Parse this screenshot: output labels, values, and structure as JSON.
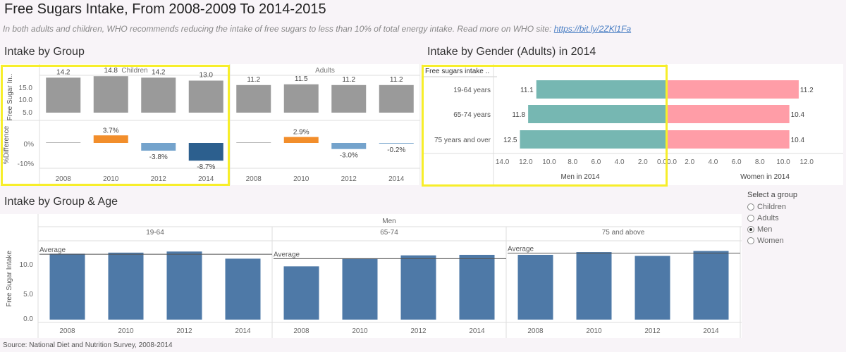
{
  "header": {
    "title": "Free Sugars Intake, From 2008-2009 To 2014-2015",
    "subtitle": "In both adults and children, WHO recommends reducing the intake of free sugars to less than 10% of total energy intake. Read more on WHO site: ",
    "link": "https://bit.ly/2ZKl1Fa"
  },
  "sections": {
    "group": "Intake by Group",
    "gender": "Intake by Gender (Adults) in 2014",
    "age": "Intake by Group & Age"
  },
  "filter": {
    "label": "Select a group",
    "options": [
      "Children",
      "Adults",
      "Men",
      "Women"
    ],
    "selected": "Men"
  },
  "footer": "Source: National Diet and Nutrition Survey, 2008-2014",
  "colors": {
    "bar_gray": "#9a9a9a",
    "pos": "#f28e2b",
    "neg_light": "#74a3cc",
    "neg_dark": "#2c5f8e",
    "men": "#76b7b2",
    "women": "#ff9da7",
    "blue": "#4e79a7",
    "highlight": "#f7ee2a"
  },
  "chart_data": [
    {
      "type": "bar",
      "title": "Intake by Group",
      "panels": [
        "Children",
        "Adults"
      ],
      "categories": [
        "2008",
        "2010",
        "2012",
        "2014"
      ],
      "ylabel": "Free Sugar In..",
      "yticks": [
        "15.0",
        "10.0",
        "5.0"
      ],
      "ylim": [
        0,
        16.5
      ],
      "series": [
        {
          "name": "Children",
          "values": [
            14.2,
            14.8,
            14.2,
            13.0
          ],
          "labels": [
            "14.2",
            "14.8",
            "14.2",
            "13.0"
          ]
        },
        {
          "name": "Adults",
          "values": [
            11.2,
            11.5,
            11.2,
            11.2
          ],
          "labels": [
            "11.2",
            "11.5",
            "11.2",
            "11.2"
          ]
        }
      ]
    },
    {
      "type": "bar",
      "title": "%Difference",
      "panels": [
        "Children",
        "Adults"
      ],
      "categories": [
        "2008",
        "2010",
        "2012",
        "2014"
      ],
      "ylabel": "%Difference",
      "yticks": [
        "0%",
        "-10%"
      ],
      "series": [
        {
          "name": "Children",
          "values": [
            0,
            3.7,
            -3.8,
            -8.7
          ],
          "labels": [
            "",
            "3.7%",
            "-3.8%",
            "-8.7%"
          ]
        },
        {
          "name": "Adults",
          "values": [
            0,
            2.9,
            -3.0,
            -0.2
          ],
          "labels": [
            "",
            "2.9%",
            "-3.0%",
            "-0.2%"
          ]
        }
      ]
    },
    {
      "type": "bar",
      "orientation": "horizontal",
      "title": "Intake by Gender (Adults) in 2014",
      "row_header": "Free sugars intake ..",
      "categories": [
        "19-64 years",
        "65-74 years",
        "75 years and over"
      ],
      "series": [
        {
          "name": "Men in 2014",
          "values": [
            11.1,
            11.8,
            12.5
          ],
          "labels": [
            "11.1",
            "11.8",
            "12.5"
          ]
        },
        {
          "name": "Women in 2014",
          "values": [
            11.2,
            10.4,
            10.4
          ],
          "labels": [
            "11.2",
            "10.4",
            "10.4"
          ]
        }
      ],
      "men_axis_ticks": [
        "14.0",
        "12.0",
        "10.0",
        "8.0",
        "6.0",
        "4.0",
        "2.0",
        "0.0"
      ],
      "women_axis_ticks": [
        "0.0",
        "2.0",
        "4.0",
        "6.0",
        "8.0",
        "10.0",
        "12.0"
      ],
      "xlim": [
        0,
        14
      ]
    },
    {
      "type": "bar",
      "title": "Intake by Group & Age",
      "group": "Men",
      "panels": [
        "19-64",
        "65-74",
        "75 and above"
      ],
      "categories": [
        "2008",
        "2010",
        "2012",
        "2014"
      ],
      "ylabel": "Free Sugar Intake",
      "yticks": [
        "10.0",
        "5.0",
        "0.0"
      ],
      "ylim": [
        0,
        13.5
      ],
      "reference_line": "Average",
      "series": [
        {
          "name": "19-64",
          "values": [
            12.0,
            12.2,
            12.4,
            11.1
          ],
          "average": 11.9
        },
        {
          "name": "65-74",
          "values": [
            9.7,
            11.1,
            11.7,
            11.8
          ],
          "average": 11.1
        },
        {
          "name": "75 and above",
          "values": [
            11.8,
            12.3,
            11.6,
            12.5
          ],
          "average": 12.1
        }
      ]
    }
  ]
}
